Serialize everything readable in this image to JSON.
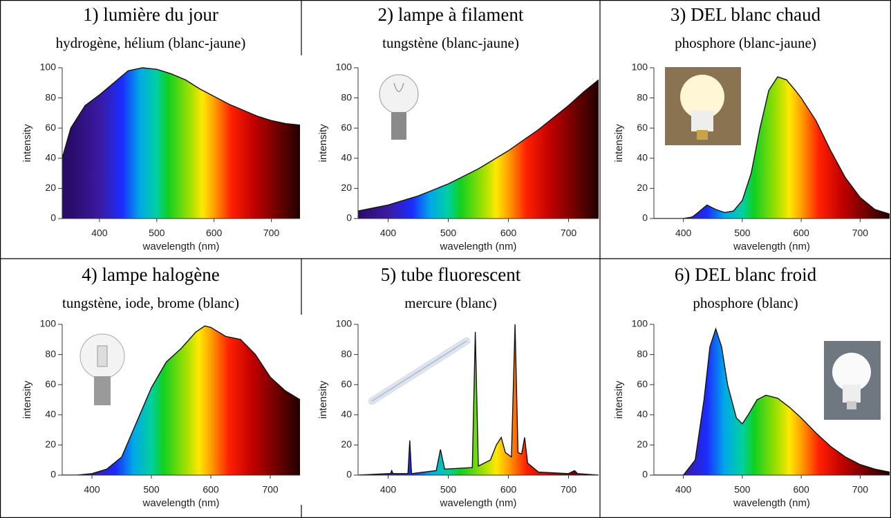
{
  "chart_data": [
    {
      "type": "area",
      "title": "1) lumière du jour",
      "subtitle": "hydrogène, hélium (blanc-jaune)",
      "xlabel": "wavelength (nm)",
      "ylabel": "intensity",
      "x": [
        335,
        350,
        375,
        400,
        425,
        450,
        475,
        500,
        525,
        550,
        575,
        600,
        625,
        650,
        675,
        700,
        725,
        750
      ],
      "values": [
        40,
        60,
        75,
        82,
        90,
        98,
        100,
        99,
        96,
        92,
        86,
        81,
        76,
        72,
        68,
        65,
        63,
        62
      ],
      "xlim": [
        335,
        750
      ],
      "ylim": [
        0,
        100
      ],
      "xticks": [
        400,
        500,
        600,
        700
      ],
      "yticks": [
        0,
        20,
        40,
        60,
        80,
        100
      ]
    },
    {
      "type": "area",
      "title": "2) lampe à filament",
      "subtitle": "tungstène (blanc-jaune)",
      "xlabel": "wavelength (nm)",
      "ylabel": "intensity",
      "x": [
        350,
        375,
        400,
        425,
        450,
        475,
        500,
        525,
        550,
        575,
        600,
        625,
        650,
        675,
        700,
        725,
        750
      ],
      "values": [
        5,
        7,
        9,
        12,
        15,
        19,
        23,
        28,
        33,
        39,
        45,
        52,
        59,
        67,
        75,
        84,
        92
      ],
      "xlim": [
        350,
        750
      ],
      "ylim": [
        0,
        100
      ],
      "xticks": [
        400,
        500,
        600,
        700
      ],
      "yticks": [
        0,
        20,
        40,
        60,
        80,
        100
      ]
    },
    {
      "type": "area",
      "title": "3) DEL blanc chaud",
      "subtitle": "phosphore (blanc-jaune)",
      "xlabel": "wavelength (nm)",
      "ylabel": "intensity",
      "x": [
        350,
        375,
        400,
        415,
        425,
        440,
        455,
        470,
        485,
        500,
        515,
        530,
        545,
        560,
        575,
        590,
        600,
        625,
        650,
        675,
        700,
        725,
        750
      ],
      "values": [
        0,
        0,
        0,
        1,
        4,
        9,
        6,
        4,
        5,
        12,
        30,
        60,
        85,
        94,
        92,
        85,
        80,
        65,
        45,
        27,
        14,
        6,
        3
      ],
      "xlim": [
        350,
        750
      ],
      "ylim": [
        0,
        100
      ],
      "xticks": [
        400,
        500,
        600,
        700
      ],
      "yticks": [
        0,
        20,
        40,
        60,
        80,
        100
      ]
    },
    {
      "type": "area",
      "title": "4) lampe halogène",
      "subtitle": "tungstène, iode, brome (blanc)",
      "xlabel": "wavelength (nm)",
      "ylabel": "intensity",
      "x": [
        350,
        375,
        400,
        425,
        450,
        475,
        500,
        525,
        550,
        575,
        590,
        600,
        625,
        650,
        675,
        700,
        725,
        750
      ],
      "values": [
        0,
        0,
        1,
        4,
        12,
        35,
        58,
        75,
        84,
        95,
        99,
        98,
        92,
        90,
        80,
        65,
        56,
        50
      ],
      "xlim": [
        350,
        750
      ],
      "ylim": [
        0,
        100
      ],
      "xticks": [
        400,
        500,
        600,
        700
      ],
      "yticks": [
        0,
        20,
        40,
        60,
        80,
        100
      ]
    },
    {
      "type": "area",
      "title": "5) tube fluorescent",
      "subtitle": "mercure (blanc)",
      "xlabel": "wavelength (nm)",
      "ylabel": "intensity",
      "x": [
        350,
        400,
        404,
        406,
        408,
        433,
        436,
        439,
        480,
        487,
        494,
        540,
        545,
        550,
        570,
        580,
        588,
        595,
        605,
        611,
        616,
        622,
        627,
        632,
        650,
        700,
        710,
        715,
        750
      ],
      "values": [
        0,
        1,
        1,
        3,
        1,
        1,
        23,
        1,
        3,
        17,
        4,
        5,
        95,
        6,
        10,
        20,
        25,
        15,
        12,
        100,
        15,
        14,
        25,
        8,
        2,
        1,
        3,
        1,
        0
      ],
      "xlim": [
        350,
        750
      ],
      "ylim": [
        0,
        100
      ],
      "xticks": [
        400,
        500,
        600,
        700
      ],
      "yticks": [
        0,
        20,
        40,
        60,
        80,
        100
      ]
    },
    {
      "type": "area",
      "title": "6) DEL blanc froid",
      "subtitle": "phosphore (blanc)",
      "xlabel": "wavelength (nm)",
      "ylabel": "intensity",
      "x": [
        350,
        375,
        400,
        420,
        435,
        445,
        455,
        465,
        475,
        490,
        500,
        510,
        525,
        540,
        560,
        580,
        600,
        625,
        650,
        675,
        700,
        725,
        750
      ],
      "values": [
        0,
        0,
        0,
        10,
        50,
        85,
        97,
        85,
        60,
        38,
        34,
        40,
        50,
        53,
        51,
        45,
        38,
        28,
        19,
        12,
        7,
        4,
        2
      ],
      "xlim": [
        350,
        750
      ],
      "ylim": [
        0,
        100
      ],
      "xticks": [
        400,
        500,
        600,
        700
      ],
      "yticks": [
        0,
        20,
        40,
        60,
        80,
        100
      ]
    }
  ]
}
